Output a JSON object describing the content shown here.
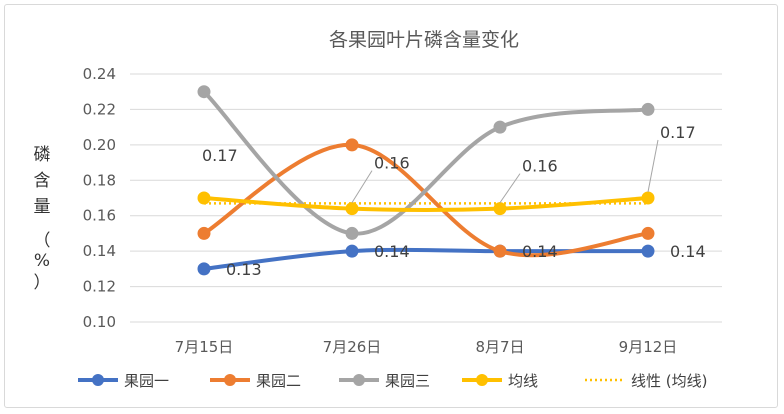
{
  "chart_data": {
    "type": "line",
    "title": "各果园叶片磷含量变化",
    "ylabel_chars": [
      "磷",
      "含",
      "量",
      "（",
      "%",
      "）"
    ],
    "xlabel": "",
    "categories": [
      "7月15日",
      "7月26日",
      "8月7日",
      "9月12日"
    ],
    "ylim": [
      0.1,
      0.24
    ],
    "yticks": [
      "0.10",
      "0.12",
      "0.14",
      "0.16",
      "0.18",
      "0.20",
      "0.22",
      "0.24"
    ],
    "grid": "horizontal",
    "legend_position": "bottom",
    "smooth": true,
    "series": [
      {
        "name": "果园一",
        "values": [
          0.13,
          0.14,
          0.14,
          0.14
        ],
        "color": "#4472C4"
      },
      {
        "name": "果园二",
        "values": [
          0.15,
          0.2,
          0.14,
          0.15
        ],
        "color": "#ED7D31"
      },
      {
        "name": "果园三",
        "values": [
          0.23,
          0.15,
          0.21,
          0.22
        ],
        "color": "#A5A5A5"
      },
      {
        "name": "均线",
        "values": [
          0.17,
          0.164,
          0.164,
          0.17
        ],
        "color": "#FFC000"
      }
    ],
    "trendline": {
      "name": "线性 (均线)",
      "values": [
        0.167,
        0.167,
        0.167,
        0.167
      ],
      "color": "#FFC000",
      "style": "dotted"
    },
    "data_labels": [
      {
        "text": "0.13",
        "category": 0,
        "value": 0.13
      },
      {
        "text": "0.14",
        "category": 1,
        "value": 0.14
      },
      {
        "text": "0.14",
        "category": 2,
        "value": 0.14
      },
      {
        "text": "0.14",
        "category": 3,
        "value": 0.14
      },
      {
        "text": "0.17",
        "category": 0,
        "value": 0.17
      },
      {
        "text": "0.16",
        "category": 1,
        "value": 0.164
      },
      {
        "text": "0.16",
        "category": 2,
        "value": 0.164
      },
      {
        "text": "0.17",
        "category": 3,
        "value": 0.17
      }
    ]
  }
}
